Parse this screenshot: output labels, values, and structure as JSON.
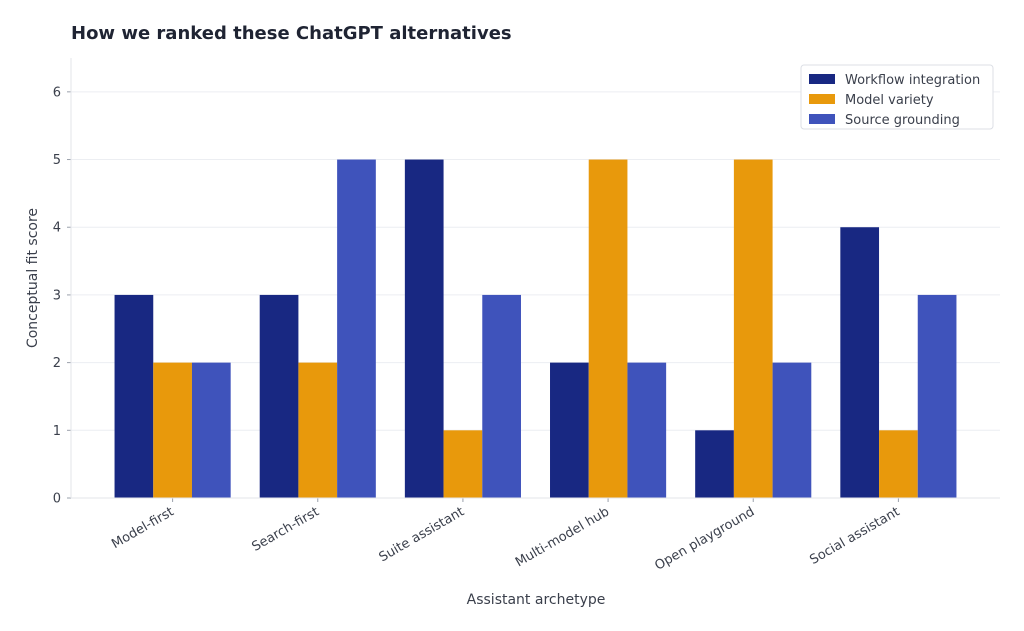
{
  "chart_data": {
    "type": "bar",
    "title": "How we ranked these ChatGPT alternatives",
    "xlabel": "Assistant archetype",
    "ylabel": "Conceptual fit score",
    "ylim": [
      0,
      6.5
    ],
    "yticks": [
      0,
      1,
      2,
      3,
      4,
      5,
      6
    ],
    "grid": true,
    "legend_position": "top-right",
    "categories": [
      "Model-first",
      "Search-first",
      "Suite assistant",
      "Multi-model hub",
      "Open playground",
      "Social assistant"
    ],
    "series": [
      {
        "name": "Workflow integration",
        "color": "#182882",
        "values": [
          3,
          3,
          5,
          2,
          1,
          4
        ]
      },
      {
        "name": "Model variety",
        "color": "#e8990c",
        "values": [
          2,
          2,
          1,
          5,
          5,
          1
        ]
      },
      {
        "name": "Source grounding",
        "color": "#3f53bb",
        "values": [
          2,
          5,
          3,
          2,
          2,
          3
        ]
      }
    ]
  }
}
